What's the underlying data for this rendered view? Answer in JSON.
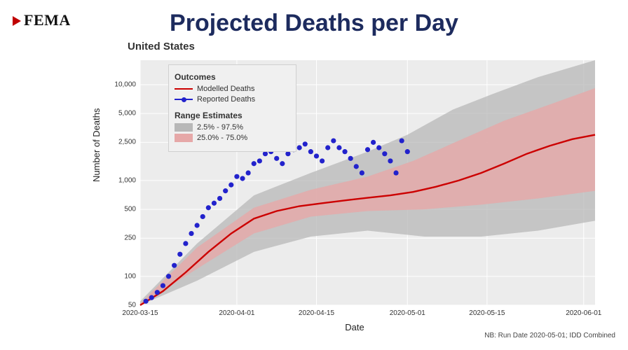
{
  "brand": "FEMA",
  "title": "Projected Deaths per Day",
  "subtitle": "United States",
  "ylabel": "Number of Deaths",
  "xlabel": "Date",
  "runnote": "NB: Run Date 2020-05-01; IDD Combined",
  "colors": {
    "title": "#1d2b5e",
    "plot_bg": "#ececec",
    "grid": "#ffffff",
    "modelled": "#cc0000",
    "reported": "#2222cc",
    "band_wide": "#b8b8b8",
    "band_narrow": "#e6a8a8",
    "brand_tri": "#c00000"
  },
  "legend": {
    "outcomes_header": "Outcomes",
    "modelled_label": "Modelled Deaths",
    "reported_label": "Reported Deaths",
    "range_header": "Range Estimates",
    "wide_label": "2.5% - 97.5%",
    "narrow_label": "25.0% - 75.0%"
  },
  "chart": {
    "type": "line",
    "x_domain_days": [
      0,
      80
    ],
    "x_ticks": [
      {
        "d": 0,
        "label": "2020-03-15"
      },
      {
        "d": 17,
        "label": "2020-04-01"
      },
      {
        "d": 31,
        "label": "2020-04-15"
      },
      {
        "d": 47,
        "label": "2020-05-01"
      },
      {
        "d": 61,
        "label": "2020-05-15"
      },
      {
        "d": 78,
        "label": "2020-06-01"
      }
    ],
    "y_scale": "log",
    "y_domain": [
      50,
      18000
    ],
    "y_ticks": [
      50,
      100,
      250,
      500,
      1000,
      2500,
      5000,
      10000
    ],
    "modelled": [
      {
        "d": 0,
        "v": 50
      },
      {
        "d": 4,
        "v": 70
      },
      {
        "d": 8,
        "v": 110
      },
      {
        "d": 12,
        "v": 180
      },
      {
        "d": 16,
        "v": 280
      },
      {
        "d": 20,
        "v": 400
      },
      {
        "d": 24,
        "v": 480
      },
      {
        "d": 28,
        "v": 540
      },
      {
        "d": 32,
        "v": 580
      },
      {
        "d": 36,
        "v": 620
      },
      {
        "d": 40,
        "v": 660
      },
      {
        "d": 44,
        "v": 700
      },
      {
        "d": 48,
        "v": 760
      },
      {
        "d": 52,
        "v": 860
      },
      {
        "d": 56,
        "v": 1000
      },
      {
        "d": 60,
        "v": 1200
      },
      {
        "d": 64,
        "v": 1500
      },
      {
        "d": 68,
        "v": 1900
      },
      {
        "d": 72,
        "v": 2300
      },
      {
        "d": 76,
        "v": 2700
      },
      {
        "d": 80,
        "v": 3000
      }
    ],
    "band_wide": {
      "lo": [
        {
          "d": 0,
          "v": 50
        },
        {
          "d": 10,
          "v": 90
        },
        {
          "d": 20,
          "v": 180
        },
        {
          "d": 30,
          "v": 260
        },
        {
          "d": 40,
          "v": 300
        },
        {
          "d": 50,
          "v": 260
        },
        {
          "d": 60,
          "v": 260
        },
        {
          "d": 70,
          "v": 300
        },
        {
          "d": 80,
          "v": 380
        }
      ],
      "hi": [
        {
          "d": 0,
          "v": 55
        },
        {
          "d": 10,
          "v": 220
        },
        {
          "d": 20,
          "v": 700
        },
        {
          "d": 30,
          "v": 1200
        },
        {
          "d": 40,
          "v": 2000
        },
        {
          "d": 47,
          "v": 3000
        },
        {
          "d": 55,
          "v": 5500
        },
        {
          "d": 62,
          "v": 8000
        },
        {
          "d": 70,
          "v": 12000
        },
        {
          "d": 80,
          "v": 18000
        }
      ]
    },
    "band_narrow": {
      "lo": [
        {
          "d": 0,
          "v": 50
        },
        {
          "d": 10,
          "v": 120
        },
        {
          "d": 20,
          "v": 280
        },
        {
          "d": 30,
          "v": 420
        },
        {
          "d": 40,
          "v": 480
        },
        {
          "d": 50,
          "v": 500
        },
        {
          "d": 60,
          "v": 560
        },
        {
          "d": 70,
          "v": 650
        },
        {
          "d": 80,
          "v": 780
        }
      ],
      "hi": [
        {
          "d": 0,
          "v": 52
        },
        {
          "d": 10,
          "v": 200
        },
        {
          "d": 20,
          "v": 520
        },
        {
          "d": 30,
          "v": 800
        },
        {
          "d": 40,
          "v": 1100
        },
        {
          "d": 48,
          "v": 1600
        },
        {
          "d": 56,
          "v": 2600
        },
        {
          "d": 64,
          "v": 4200
        },
        {
          "d": 72,
          "v": 6200
        },
        {
          "d": 80,
          "v": 9200
        }
      ]
    },
    "reported": [
      {
        "d": 1,
        "v": 55
      },
      {
        "d": 2,
        "v": 60
      },
      {
        "d": 3,
        "v": 68
      },
      {
        "d": 4,
        "v": 80
      },
      {
        "d": 5,
        "v": 100
      },
      {
        "d": 6,
        "v": 130
      },
      {
        "d": 7,
        "v": 170
      },
      {
        "d": 8,
        "v": 220
      },
      {
        "d": 9,
        "v": 280
      },
      {
        "d": 10,
        "v": 340
      },
      {
        "d": 11,
        "v": 420
      },
      {
        "d": 12,
        "v": 520
      },
      {
        "d": 13,
        "v": 580
      },
      {
        "d": 14,
        "v": 650
      },
      {
        "d": 15,
        "v": 780
      },
      {
        "d": 16,
        "v": 900
      },
      {
        "d": 17,
        "v": 1100
      },
      {
        "d": 18,
        "v": 1050
      },
      {
        "d": 19,
        "v": 1200
      },
      {
        "d": 20,
        "v": 1500
      },
      {
        "d": 21,
        "v": 1600
      },
      {
        "d": 22,
        "v": 1900
      },
      {
        "d": 23,
        "v": 2000
      },
      {
        "d": 24,
        "v": 1700
      },
      {
        "d": 25,
        "v": 1500
      },
      {
        "d": 26,
        "v": 1900
      },
      {
        "d": 27,
        "v": 2100
      },
      {
        "d": 28,
        "v": 2200
      },
      {
        "d": 29,
        "v": 2400
      },
      {
        "d": 30,
        "v": 2000
      },
      {
        "d": 31,
        "v": 1800
      },
      {
        "d": 32,
        "v": 1600
      },
      {
        "d": 33,
        "v": 2200
      },
      {
        "d": 34,
        "v": 2600
      },
      {
        "d": 35,
        "v": 2200
      },
      {
        "d": 36,
        "v": 2000
      },
      {
        "d": 37,
        "v": 1700
      },
      {
        "d": 38,
        "v": 1400
      },
      {
        "d": 39,
        "v": 1200
      },
      {
        "d": 40,
        "v": 2100
      },
      {
        "d": 41,
        "v": 2500
      },
      {
        "d": 42,
        "v": 2200
      },
      {
        "d": 43,
        "v": 1900
      },
      {
        "d": 44,
        "v": 1600
      },
      {
        "d": 45,
        "v": 1200
      },
      {
        "d": 46,
        "v": 2600
      },
      {
        "d": 47,
        "v": 2000
      }
    ]
  }
}
